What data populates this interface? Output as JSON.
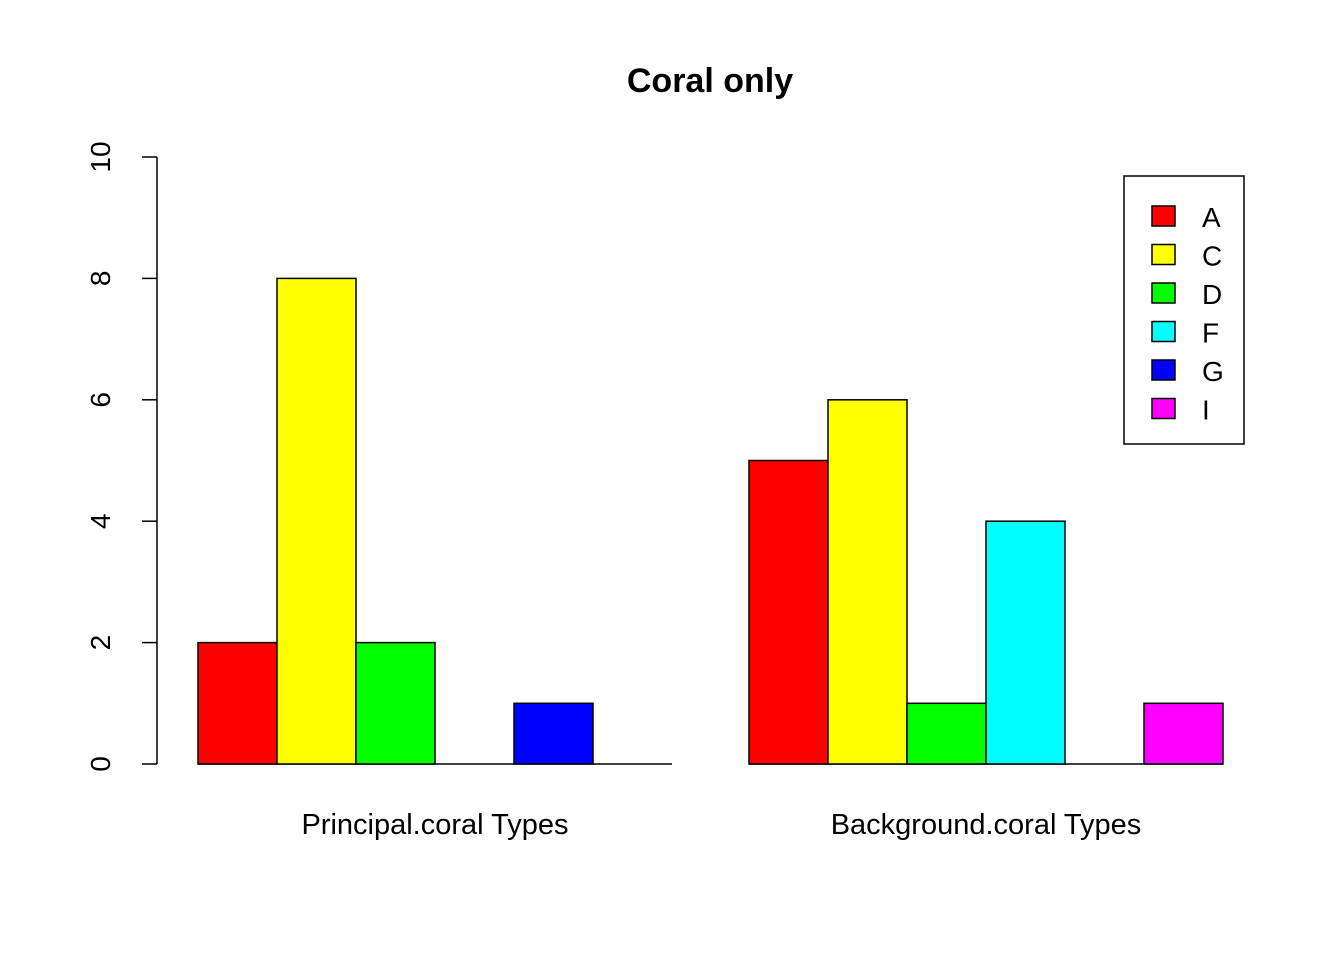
{
  "chart_data": {
    "type": "bar",
    "title": "Coral only",
    "xlabel": "",
    "ylabel": "",
    "ylim": [
      0,
      10
    ],
    "yticks": [
      0,
      2,
      4,
      6,
      8,
      10
    ],
    "categories": [
      "Principal.coral Types",
      "Background.coral Types"
    ],
    "series": [
      {
        "name": "A",
        "color": "#FF0000",
        "values": [
          2,
          5
        ]
      },
      {
        "name": "C",
        "color": "#FFFF00",
        "values": [
          8,
          6
        ]
      },
      {
        "name": "D",
        "color": "#00FF00",
        "values": [
          2,
          1
        ]
      },
      {
        "name": "F",
        "color": "#00FFFF",
        "values": [
          0,
          4
        ]
      },
      {
        "name": "G",
        "color": "#0000FF",
        "values": [
          1,
          0
        ]
      },
      {
        "name": "I",
        "color": "#FF00FF",
        "values": [
          0,
          1
        ]
      }
    ],
    "legend_position": "top-right",
    "grid": false,
    "bar_mode": "grouped"
  }
}
